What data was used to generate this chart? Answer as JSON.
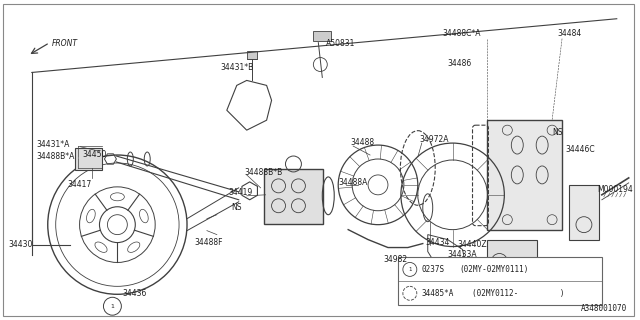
{
  "bg_color": "#ffffff",
  "fig_width": 6.4,
  "fig_height": 3.2,
  "dpi": 100,
  "lc": "#404040",
  "tc": "#202020",
  "ref_code": "A348001070",
  "legend_items": [
    {
      "circle": "1",
      "symbol": "0237S",
      "desc": "(02MY-02MY0111)"
    },
    {
      "circle": "-",
      "symbol": "34485*A",
      "desc": "(02MY0112-         )"
    }
  ]
}
